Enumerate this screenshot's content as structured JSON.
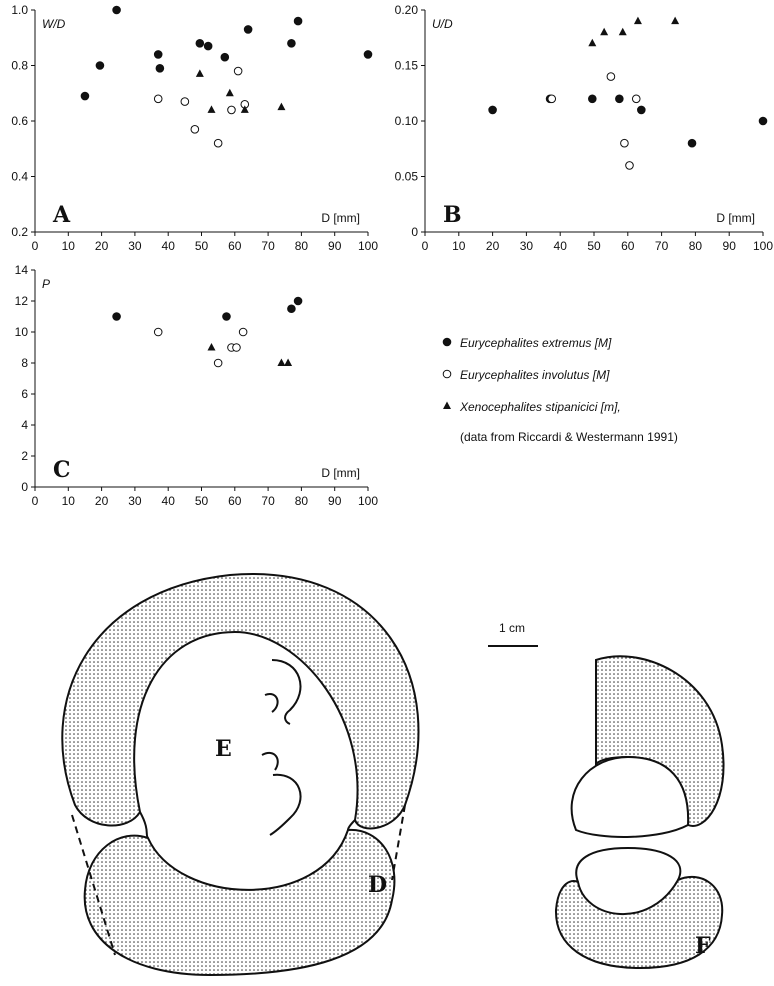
{
  "chart_data": [
    {
      "type": "scatter",
      "panel": "A",
      "y_label": "W/D",
      "x_label": "D [mm]",
      "xlim": [
        0,
        100
      ],
      "xticks": [
        0,
        10,
        20,
        30,
        40,
        50,
        60,
        70,
        80,
        90,
        100
      ],
      "ylim": [
        0.2,
        1.0
      ],
      "yticks": [
        0.2,
        0.4,
        0.6,
        0.8,
        {
          "value": 1.0,
          "label": "1.0"
        }
      ],
      "series": [
        {
          "marker": "circle-filled",
          "color": "#111111",
          "x": [
            15,
            19.5,
            24.5,
            37,
            37.5,
            49.5,
            52,
            57,
            64,
            77,
            79,
            100
          ],
          "values": [
            0.69,
            0.8,
            1.0,
            0.84,
            0.79,
            0.88,
            0.87,
            0.83,
            0.93,
            0.88,
            0.96,
            0.84
          ]
        },
        {
          "marker": "circle-open",
          "color": "#111111",
          "x": [
            37,
            45,
            48,
            55,
            59,
            61,
            63
          ],
          "values": [
            0.68,
            0.67,
            0.57,
            0.52,
            0.64,
            0.78,
            0.66
          ]
        },
        {
          "marker": "triangle",
          "color": "#111111",
          "x": [
            49.5,
            53,
            58.5,
            63,
            74
          ],
          "values": [
            0.77,
            0.64,
            0.7,
            0.64,
            0.65
          ]
        }
      ]
    },
    {
      "type": "scatter",
      "panel": "B",
      "y_label": "U/D",
      "x_label": "D [mm]",
      "xlim": [
        0,
        100
      ],
      "xticks": [
        0,
        10,
        20,
        30,
        40,
        50,
        60,
        70,
        80,
        90,
        100
      ],
      "ylim": [
        0,
        0.2
      ],
      "yticks": [
        0,
        0.05,
        {
          "value": 0.1,
          "label": "0.10"
        },
        0.15,
        {
          "value": 0.2,
          "label": "0.20"
        }
      ],
      "series": [
        {
          "marker": "circle-filled",
          "color": "#111111",
          "x": [
            20,
            37,
            49.5,
            57.5,
            64,
            79,
            100
          ],
          "values": [
            0.11,
            0.12,
            0.12,
            0.12,
            0.11,
            0.08,
            0.1
          ]
        },
        {
          "marker": "circle-open",
          "color": "#111111",
          "x": [
            37.5,
            55,
            59,
            60.5,
            62.5
          ],
          "values": [
            0.12,
            0.14,
            0.08,
            0.06,
            0.12
          ]
        },
        {
          "marker": "triangle",
          "color": "#111111",
          "x": [
            49.5,
            53,
            58.5,
            63,
            74
          ],
          "values": [
            0.17,
            0.18,
            0.18,
            0.19,
            0.19
          ]
        }
      ]
    },
    {
      "type": "scatter",
      "panel": "C",
      "y_label": "P",
      "x_label": "D [mm]",
      "xlim": [
        0,
        100
      ],
      "xticks": [
        0,
        10,
        20,
        30,
        40,
        50,
        60,
        70,
        80,
        90,
        100
      ],
      "ylim": [
        0,
        14
      ],
      "yticks": [
        0,
        2,
        4,
        6,
        8,
        10,
        12,
        14
      ],
      "legend_note": "(data from Riccardi & Westermann 1991)",
      "series": [
        {
          "name": "Eurycephalites extremus [M]",
          "marker": "circle-filled",
          "color": "#111111",
          "x": [
            24.5,
            57.5,
            77,
            79
          ],
          "values": [
            11,
            11,
            11.5,
            12
          ]
        },
        {
          "name": "Eurycephalites involutus [M]",
          "marker": "circle-open",
          "color": "#111111",
          "x": [
            37,
            55,
            59,
            60.5,
            62.5
          ],
          "values": [
            10,
            8,
            9,
            9,
            10
          ]
        },
        {
          "name": "Xenocephalites stipanicici [m],",
          "marker": "triangle",
          "color": "#111111",
          "x": [
            53,
            74,
            76
          ],
          "values": [
            9,
            8,
            8
          ]
        }
      ]
    }
  ],
  "diagram": {
    "scale_label": "1 cm",
    "labels": [
      "D",
      "E",
      "F"
    ]
  }
}
